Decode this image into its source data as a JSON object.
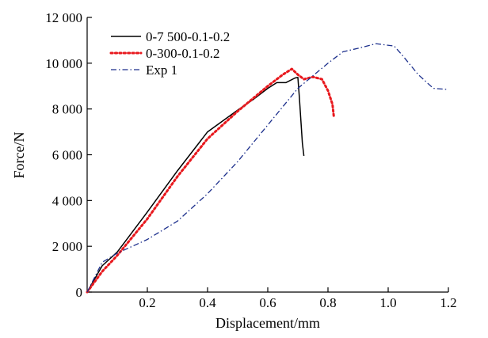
{
  "chart_data": {
    "type": "line",
    "title": "",
    "xlabel": "Displacement/mm",
    "ylabel": "Force/N",
    "xlim": [
      0,
      1.2
    ],
    "ylim": [
      0,
      12000
    ],
    "x_ticks": [
      {
        "value": 0.2,
        "label": "0.2"
      },
      {
        "value": 0.4,
        "label": "0.4"
      },
      {
        "value": 0.6,
        "label": "0.6"
      },
      {
        "value": 0.8,
        "label": "0.8"
      },
      {
        "value": 1.0,
        "label": "1.0"
      },
      {
        "value": 1.2,
        "label": "1.2"
      }
    ],
    "y_ticks": [
      {
        "value": 0,
        "label": "0"
      },
      {
        "value": 2000,
        "label": "2 000"
      },
      {
        "value": 4000,
        "label": "4 000"
      },
      {
        "value": 6000,
        "label": "6 000"
      },
      {
        "value": 8000,
        "label": "8 000"
      },
      {
        "value": 10000,
        "label": "10 000"
      },
      {
        "value": 12000,
        "label": "12 000"
      }
    ],
    "grid": false,
    "legend_position": "top-left",
    "series": [
      {
        "name": "0-7 500-0.1-0.2",
        "color": "#000000",
        "style": "solid",
        "points": [
          [
            0,
            0
          ],
          [
            0.05,
            1150
          ],
          [
            0.1,
            1750
          ],
          [
            0.2,
            3500
          ],
          [
            0.3,
            5300
          ],
          [
            0.4,
            7000
          ],
          [
            0.5,
            7950
          ],
          [
            0.55,
            8400
          ],
          [
            0.6,
            8900
          ],
          [
            0.63,
            9150
          ],
          [
            0.66,
            9150
          ],
          [
            0.69,
            9350
          ],
          [
            0.7,
            9380
          ],
          [
            0.705,
            8500
          ],
          [
            0.71,
            7500
          ],
          [
            0.715,
            6500
          ],
          [
            0.72,
            5950
          ]
        ]
      },
      {
        "name": "0-300-0.1-0.2",
        "color": "#e8191e",
        "style": "dotted",
        "points": [
          [
            0,
            0
          ],
          [
            0.05,
            900
          ],
          [
            0.1,
            1600
          ],
          [
            0.2,
            3200
          ],
          [
            0.3,
            5050
          ],
          [
            0.4,
            6700
          ],
          [
            0.5,
            7900
          ],
          [
            0.6,
            9000
          ],
          [
            0.65,
            9500
          ],
          [
            0.68,
            9750
          ],
          [
            0.7,
            9500
          ],
          [
            0.72,
            9300
          ],
          [
            0.75,
            9400
          ],
          [
            0.78,
            9300
          ],
          [
            0.8,
            8800
          ],
          [
            0.815,
            8200
          ],
          [
            0.82,
            7600
          ]
        ]
      },
      {
        "name": "Exp 1",
        "color": "#1c2f8c",
        "style": "dashdot",
        "points": [
          [
            0,
            0
          ],
          [
            0.05,
            1300
          ],
          [
            0.1,
            1700
          ],
          [
            0.2,
            2300
          ],
          [
            0.3,
            3100
          ],
          [
            0.4,
            4300
          ],
          [
            0.5,
            5700
          ],
          [
            0.6,
            7300
          ],
          [
            0.7,
            8900
          ],
          [
            0.8,
            10000
          ],
          [
            0.85,
            10500
          ],
          [
            0.9,
            10650
          ],
          [
            0.96,
            10850
          ],
          [
            1.02,
            10750
          ],
          [
            1.05,
            10300
          ],
          [
            1.1,
            9500
          ],
          [
            1.15,
            8900
          ],
          [
            1.2,
            8850
          ]
        ]
      }
    ]
  }
}
